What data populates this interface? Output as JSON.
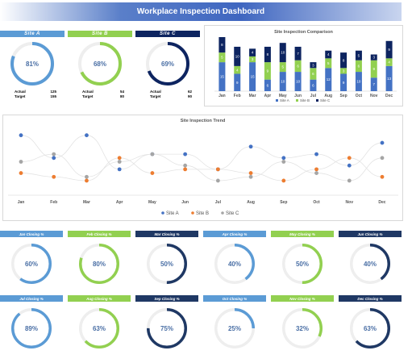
{
  "title": "Workplace Inspection Dashboard",
  "colors": {
    "siteA": "#4472c4",
    "siteB": "#92d050",
    "siteC": "#0d2460",
    "track": "#eeeeee"
  },
  "sites": [
    {
      "name": "Site A",
      "percent": "81%",
      "value": 0.81,
      "actual_label": "Actual",
      "actual": "125",
      "target_label": "Target",
      "target": "155",
      "color": "#5b9bd5",
      "dark": false
    },
    {
      "name": "Site B",
      "percent": "68%",
      "value": 0.68,
      "actual_label": "Actual",
      "actual": "54",
      "target_label": "Target",
      "target": "80",
      "color": "#92d050",
      "dark": false
    },
    {
      "name": "Site C",
      "percent": "69%",
      "value": 0.69,
      "actual_label": "Actual",
      "actual": "62",
      "target_label": "Target",
      "target": "90",
      "color": "#0d2460",
      "dark": true
    }
  ],
  "chart_data": [
    {
      "type": "bar",
      "stacked": true,
      "title": "Site Inspection Comparison",
      "categories": [
        "Jan",
        "Feb",
        "Mar",
        "Apr",
        "May",
        "Jun",
        "Jul",
        "Aug",
        "Sep",
        "Oct",
        "Nov",
        "Dec"
      ],
      "series": [
        {
          "name": "Site A",
          "color": "#4472c4",
          "values": [
            15,
            9,
            15,
            6,
            10,
            10,
            6,
            12,
            9,
            10,
            7,
            13
          ]
        },
        {
          "name": "Site B",
          "color": "#92d050",
          "values": [
            5,
            4,
            3,
            9,
            5,
            6,
            6,
            5,
            3,
            6,
            9,
            4
          ]
        },
        {
          "name": "Site C",
          "color": "#0d2460",
          "values": [
            8,
            10,
            4,
            8,
            10,
            7,
            3,
            4,
            8,
            5,
            3,
            9
          ]
        }
      ],
      "legend": "bottom"
    },
    {
      "type": "line",
      "title": "Site Inspection Trend",
      "categories": [
        "Jan",
        "Feb",
        "Mar",
        "Apr",
        "May",
        "Jun",
        "Jul",
        "Aug",
        "Sep",
        "Oct",
        "Nov",
        "Dec"
      ],
      "series": [
        {
          "name": "Site A",
          "color": "#4472c4",
          "values": [
            15,
            9,
            15,
            6,
            10,
            10,
            6,
            12,
            9,
            10,
            7,
            13
          ]
        },
        {
          "name": "Site B",
          "color": "#ed7d31",
          "values": [
            5,
            4,
            3,
            9,
            5,
            6,
            6,
            5,
            3,
            6,
            9,
            4
          ]
        },
        {
          "name": "Site C",
          "color": "#a5a5a5",
          "values": [
            8,
            10,
            4,
            8,
            10,
            7,
            3,
            4,
            8,
            5,
            3,
            9
          ]
        }
      ],
      "legend": "bottom"
    }
  ],
  "monthly": [
    {
      "label": "Jan Closing %",
      "percent": "60%",
      "value": 0.6,
      "color": "#5b9bd5"
    },
    {
      "label": "Feb Closing %",
      "percent": "80%",
      "value": 0.8,
      "color": "#92d050"
    },
    {
      "label": "Mar Closing %",
      "percent": "50%",
      "value": 0.5,
      "color": "#1f3864"
    },
    {
      "label": "Apr Closing %",
      "percent": "40%",
      "value": 0.4,
      "color": "#5b9bd5"
    },
    {
      "label": "May Closing %",
      "percent": "50%",
      "value": 0.5,
      "color": "#92d050"
    },
    {
      "label": "Jun Closing %",
      "percent": "40%",
      "value": 0.4,
      "color": "#1f3864"
    },
    {
      "label": "Jul Closing %",
      "percent": "89%",
      "value": 0.89,
      "color": "#5b9bd5"
    },
    {
      "label": "Aug Closing %",
      "percent": "63%",
      "value": 0.63,
      "color": "#92d050"
    },
    {
      "label": "Sep Closing %",
      "percent": "75%",
      "value": 0.75,
      "color": "#1f3864"
    },
    {
      "label": "Oct Closing %",
      "percent": "25%",
      "value": 0.25,
      "color": "#5b9bd5"
    },
    {
      "label": "Nov Closing %",
      "percent": "32%",
      "value": 0.32,
      "color": "#92d050"
    },
    {
      "label": "Dec Closing %",
      "percent": "63%",
      "value": 0.63,
      "color": "#1f3864"
    }
  ]
}
